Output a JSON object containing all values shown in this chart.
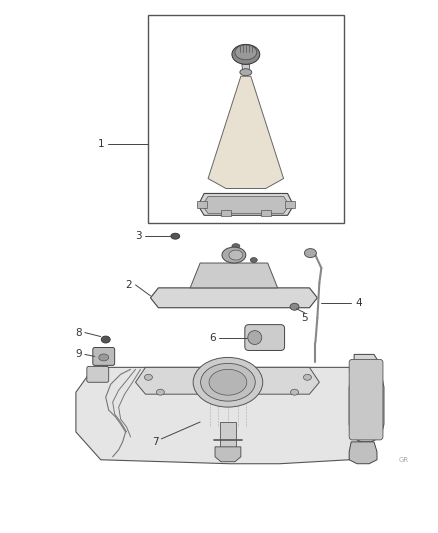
{
  "bg_color": "#ffffff",
  "fig_width": 4.38,
  "fig_height": 5.33,
  "dpi": 100,
  "lc": "#444444",
  "lw": 0.7,
  "label_color": "#333333",
  "label_fs": 7.5
}
